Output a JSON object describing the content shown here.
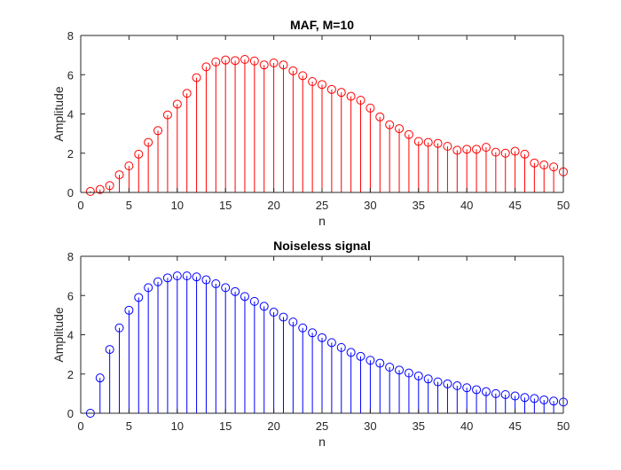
{
  "chart_data": [
    {
      "type": "stem",
      "title": "MAF, M=10",
      "xlabel": "n",
      "ylabel": "Amplitude",
      "xlim": [
        0,
        50
      ],
      "ylim": [
        0,
        8
      ],
      "xticks": [
        "0",
        "5",
        "10",
        "15",
        "20",
        "25",
        "30",
        "35",
        "40",
        "45",
        "50"
      ],
      "yticks": [
        "0",
        "2",
        "4",
        "6",
        "8"
      ],
      "color": "#ff0000",
      "grid": false,
      "x": [
        1,
        2,
        3,
        4,
        5,
        6,
        7,
        8,
        9,
        10,
        11,
        12,
        13,
        14,
        15,
        16,
        17,
        18,
        19,
        20,
        21,
        22,
        23,
        24,
        25,
        26,
        27,
        28,
        29,
        30,
        31,
        32,
        33,
        34,
        35,
        36,
        37,
        38,
        39,
        40,
        41,
        42,
        43,
        44,
        45,
        46,
        47,
        48,
        49,
        50
      ],
      "values": [
        0.05,
        0.15,
        0.35,
        0.9,
        1.35,
        1.95,
        2.55,
        3.15,
        3.95,
        4.5,
        5.05,
        5.85,
        6.4,
        6.65,
        6.75,
        6.72,
        6.78,
        6.7,
        6.5,
        6.6,
        6.5,
        6.2,
        5.95,
        5.65,
        5.5,
        5.25,
        5.1,
        4.9,
        4.7,
        4.3,
        3.85,
        3.45,
        3.25,
        2.95,
        2.6,
        2.55,
        2.5,
        2.35,
        2.15,
        2.2,
        2.2,
        2.3,
        2.05,
        2.0,
        2.1,
        1.95,
        1.5,
        1.4,
        1.3,
        1.05
      ]
    },
    {
      "type": "stem",
      "title": "Noiseless signal",
      "xlabel": "n",
      "ylabel": "Amplitude",
      "xlim": [
        0,
        50
      ],
      "ylim": [
        0,
        8
      ],
      "xticks": [
        "0",
        "5",
        "10",
        "15",
        "20",
        "25",
        "30",
        "35",
        "40",
        "45",
        "50"
      ],
      "yticks": [
        "0",
        "2",
        "4",
        "6",
        "8"
      ],
      "color": "#0000ff",
      "grid": false,
      "x": [
        1,
        2,
        3,
        4,
        5,
        6,
        7,
        8,
        9,
        10,
        11,
        12,
        13,
        14,
        15,
        16,
        17,
        18,
        19,
        20,
        21,
        22,
        23,
        24,
        25,
        26,
        27,
        28,
        29,
        30,
        31,
        32,
        33,
        34,
        35,
        36,
        37,
        38,
        39,
        40,
        41,
        42,
        43,
        44,
        45,
        46,
        47,
        48,
        49,
        50
      ],
      "values": [
        0,
        1.8,
        3.25,
        4.35,
        5.25,
        5.9,
        6.4,
        6.7,
        6.9,
        7.0,
        7.0,
        6.95,
        6.8,
        6.6,
        6.4,
        6.2,
        5.95,
        5.7,
        5.45,
        5.15,
        4.9,
        4.65,
        4.35,
        4.1,
        3.85,
        3.6,
        3.35,
        3.1,
        2.9,
        2.7,
        2.55,
        2.35,
        2.2,
        2.05,
        1.9,
        1.75,
        1.6,
        1.5,
        1.4,
        1.3,
        1.2,
        1.1,
        1.0,
        0.95,
        0.88,
        0.8,
        0.75,
        0.68,
        0.62,
        0.57
      ]
    }
  ]
}
